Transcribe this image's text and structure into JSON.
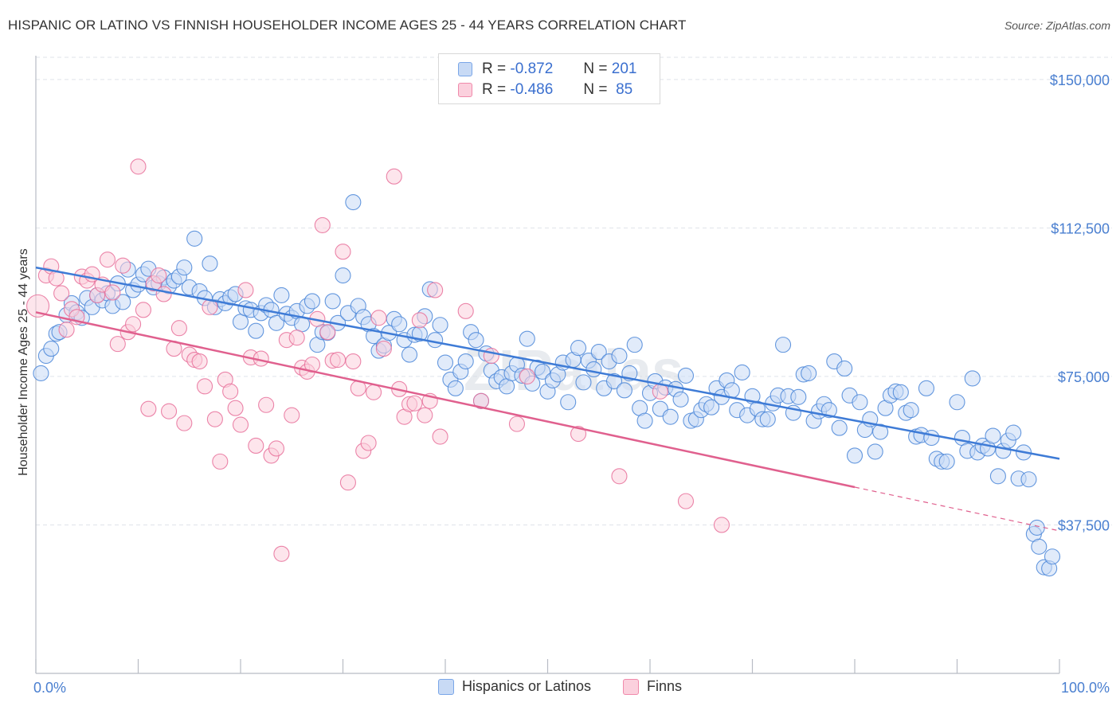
{
  "title": "HISPANIC OR LATINO VS FINNISH HOUSEHOLDER INCOME AGES 25 - 44 YEARS CORRELATION CHART",
  "source": "Source: ZipAtlas.com",
  "watermark": "ZIPatlas",
  "legend": {
    "r_label": "R =",
    "n_label": "N =",
    "rows": [
      {
        "r": "-0.872",
        "n": "201",
        "color": "#7aa6e8",
        "fill": "#c8daf5"
      },
      {
        "r": "-0.486",
        "n": "85",
        "color": "#f08aab",
        "fill": "#fbd0dd"
      }
    ]
  },
  "bottom_legend": [
    {
      "label": "Hispanics or Latinos",
      "color": "#7aa6e8",
      "fill": "#c8daf5"
    },
    {
      "label": "Finns",
      "color": "#f08aab",
      "fill": "#fbd0dd"
    }
  ],
  "chart_data": {
    "type": "scatter",
    "title": "HISPANIC OR LATINO VS FINNISH HOUSEHOLDER INCOME AGES 25 - 44 YEARS CORRELATION CHART",
    "xlabel": "",
    "ylabel": "Householder Income Ages 25 - 44 years",
    "xlim": [
      0,
      100
    ],
    "ylim": [
      0,
      156000
    ],
    "x_tick_labels": [
      "0.0%",
      "100.0%"
    ],
    "y_ticks": [
      37500,
      75000,
      112500,
      150000
    ],
    "y_tick_labels": [
      "$37,500",
      "$75,000",
      "$112,500",
      "$150,000"
    ],
    "grid": "horizontal dashed",
    "legend_placement": "top-center",
    "series": [
      {
        "name": "Hispanics or Latinos",
        "color": "#4a86d8",
        "fill": "#c8daf5",
        "trend": {
          "x": [
            0,
            100
          ],
          "y": [
            102500,
            54200
          ]
        },
        "points": [
          [
            0.5,
            75800
          ],
          [
            1,
            80200
          ],
          [
            1.5,
            82000
          ],
          [
            2,
            85800
          ],
          [
            2.3,
            86200
          ],
          [
            3,
            90500
          ],
          [
            3.5,
            93500
          ],
          [
            4,
            91200
          ],
          [
            4.5,
            89800
          ],
          [
            5,
            94800
          ],
          [
            5.5,
            92500
          ],
          [
            6,
            95500
          ],
          [
            6.5,
            94200
          ],
          [
            7,
            96000
          ],
          [
            7.5,
            92800
          ],
          [
            8,
            98500
          ],
          [
            8.5,
            93800
          ],
          [
            9,
            102000
          ],
          [
            9.5,
            96800
          ],
          [
            10,
            98200
          ],
          [
            10.5,
            100800
          ],
          [
            11,
            102200
          ],
          [
            11.5,
            97500
          ],
          [
            12,
            98500
          ],
          [
            12.5,
            100000
          ],
          [
            13,
            97800
          ],
          [
            13.5,
            99200
          ],
          [
            14,
            100200
          ],
          [
            14.5,
            102500
          ],
          [
            15,
            97500
          ],
          [
            15.5,
            109800
          ],
          [
            16,
            96500
          ],
          [
            16.5,
            94800
          ],
          [
            17,
            103500
          ],
          [
            17.5,
            92500
          ],
          [
            18,
            94500
          ],
          [
            18.5,
            93500
          ],
          [
            19,
            95000
          ],
          [
            19.5,
            95800
          ],
          [
            20,
            88800
          ],
          [
            20.5,
            92200
          ],
          [
            21,
            91800
          ],
          [
            21.5,
            86500
          ],
          [
            22,
            91000
          ],
          [
            22.5,
            93000
          ],
          [
            23,
            91800
          ],
          [
            23.5,
            88500
          ],
          [
            24,
            95500
          ],
          [
            24.5,
            90800
          ],
          [
            25,
            89800
          ],
          [
            25.5,
            91500
          ],
          [
            26,
            88200
          ],
          [
            26.5,
            92800
          ],
          [
            27,
            94000
          ],
          [
            27.5,
            83000
          ],
          [
            28,
            86200
          ],
          [
            28.5,
            86000
          ],
          [
            29,
            94000
          ],
          [
            29.5,
            88500
          ],
          [
            30,
            100500
          ],
          [
            30.5,
            91000
          ],
          [
            31,
            119000
          ],
          [
            31.5,
            92800
          ],
          [
            32,
            90000
          ],
          [
            32.5,
            88200
          ],
          [
            33,
            85200
          ],
          [
            33.5,
            81500
          ],
          [
            34,
            82800
          ],
          [
            34.5,
            86000
          ],
          [
            35,
            89500
          ],
          [
            35.5,
            88200
          ],
          [
            36,
            84200
          ],
          [
            36.5,
            80500
          ],
          [
            37,
            85500
          ],
          [
            37.5,
            85800
          ],
          [
            38,
            90200
          ],
          [
            38.5,
            97000
          ],
          [
            39,
            84200
          ],
          [
            39.5,
            88000
          ],
          [
            40,
            78500
          ],
          [
            40.5,
            74200
          ],
          [
            41,
            72000
          ],
          [
            41.5,
            76200
          ],
          [
            42,
            78800
          ],
          [
            42.5,
            86200
          ],
          [
            43,
            84200
          ],
          [
            43.5,
            68800
          ],
          [
            44,
            80800
          ],
          [
            44.5,
            76500
          ],
          [
            45,
            73800
          ],
          [
            45.5,
            74800
          ],
          [
            46,
            72500
          ],
          [
            46.5,
            75800
          ],
          [
            47,
            78000
          ],
          [
            47.5,
            75200
          ],
          [
            48,
            84500
          ],
          [
            48.5,
            73200
          ],
          [
            49,
            77200
          ],
          [
            49.5,
            76200
          ],
          [
            50,
            71200
          ],
          [
            50.5,
            74000
          ],
          [
            51,
            75500
          ],
          [
            51.5,
            78500
          ],
          [
            52,
            68500
          ],
          [
            52.5,
            79200
          ],
          [
            53,
            82200
          ],
          [
            53.5,
            73500
          ],
          [
            54,
            79000
          ],
          [
            54.5,
            76800
          ],
          [
            55,
            81200
          ],
          [
            55.5,
            72000
          ],
          [
            56,
            78800
          ],
          [
            56.5,
            73800
          ],
          [
            57,
            80200
          ],
          [
            57.5,
            71500
          ],
          [
            58,
            75800
          ],
          [
            58.5,
            83000
          ],
          [
            59,
            67000
          ],
          [
            59.5,
            63800
          ],
          [
            60,
            70800
          ],
          [
            60.5,
            73800
          ],
          [
            61,
            66800
          ],
          [
            61.5,
            72200
          ],
          [
            62,
            64800
          ],
          [
            62.5,
            71800
          ],
          [
            63,
            69200
          ],
          [
            63.5,
            75200
          ],
          [
            64,
            63800
          ],
          [
            64.5,
            64200
          ],
          [
            65,
            66500
          ],
          [
            65.5,
            68000
          ],
          [
            66,
            67200
          ],
          [
            66.5,
            72000
          ],
          [
            67,
            69800
          ],
          [
            67.5,
            74000
          ],
          [
            68,
            71500
          ],
          [
            68.5,
            66500
          ],
          [
            69,
            76000
          ],
          [
            69.5,
            65200
          ],
          [
            70,
            70000
          ],
          [
            70.5,
            66800
          ],
          [
            71,
            64200
          ],
          [
            71.5,
            64200
          ],
          [
            72,
            68200
          ],
          [
            72.5,
            70200
          ],
          [
            73,
            83000
          ],
          [
            73.5,
            70000
          ],
          [
            74,
            65800
          ],
          [
            74.5,
            69800
          ],
          [
            75,
            75500
          ],
          [
            75.5,
            75800
          ],
          [
            76,
            63800
          ],
          [
            76.5,
            66200
          ],
          [
            77,
            68000
          ],
          [
            77.5,
            66500
          ],
          [
            78,
            78800
          ],
          [
            78.5,
            62000
          ],
          [
            79,
            77000
          ],
          [
            79.5,
            70200
          ],
          [
            80,
            55000
          ],
          [
            80.5,
            68500
          ],
          [
            81,
            61500
          ],
          [
            81.5,
            64200
          ],
          [
            82,
            56000
          ],
          [
            82.5,
            61000
          ],
          [
            83,
            67000
          ],
          [
            83.5,
            70200
          ],
          [
            84,
            71200
          ],
          [
            84.5,
            71000
          ],
          [
            85,
            65800
          ],
          [
            85.5,
            66500
          ],
          [
            86,
            59800
          ],
          [
            86.5,
            60200
          ],
          [
            87,
            72000
          ],
          [
            87.5,
            59500
          ],
          [
            88,
            54200
          ],
          [
            88.5,
            53500
          ],
          [
            89,
            53500
          ],
          [
            90,
            68500
          ],
          [
            90.5,
            59500
          ],
          [
            91,
            56200
          ],
          [
            91.5,
            74500
          ],
          [
            92,
            55800
          ],
          [
            92.5,
            57500
          ],
          [
            93,
            56800
          ],
          [
            93.5,
            60000
          ],
          [
            94,
            49800
          ],
          [
            94.5,
            56200
          ],
          [
            95,
            58800
          ],
          [
            95.5,
            60800
          ],
          [
            96,
            49200
          ],
          [
            96.5,
            55800
          ],
          [
            97,
            49000
          ],
          [
            97.5,
            35200
          ],
          [
            97.8,
            36800
          ],
          [
            98,
            32000
          ],
          [
            98.5,
            26800
          ],
          [
            99,
            26500
          ],
          [
            99.3,
            29500
          ]
        ]
      },
      {
        "name": "Finns",
        "color": "#e8709a",
        "fill": "#fbd0dd",
        "trend": {
          "x": [
            0,
            100
          ],
          "y": [
            91200,
            36000
          ],
          "solid_until_x": 80
        },
        "points": [
          [
            0.2,
            92800
          ],
          [
            1,
            100500
          ],
          [
            1.5,
            102800
          ],
          [
            2,
            99800
          ],
          [
            2.5,
            96000
          ],
          [
            3,
            86800
          ],
          [
            3.5,
            92000
          ],
          [
            4,
            90000
          ],
          [
            4.5,
            100200
          ],
          [
            5,
            99200
          ],
          [
            5.5,
            100800
          ],
          [
            6,
            95500
          ],
          [
            6.5,
            98200
          ],
          [
            7,
            104500
          ],
          [
            7.5,
            96200
          ],
          [
            8,
            83200
          ],
          [
            8.5,
            103000
          ],
          [
            9,
            86200
          ],
          [
            9.5,
            88200
          ],
          [
            10,
            128000
          ],
          [
            10.5,
            91800
          ],
          [
            11,
            66800
          ],
          [
            11.5,
            98500
          ],
          [
            12,
            100500
          ],
          [
            12.5,
            95800
          ],
          [
            13,
            66200
          ],
          [
            13.5,
            82000
          ],
          [
            14,
            87200
          ],
          [
            14.5,
            63200
          ],
          [
            15,
            80500
          ],
          [
            15.5,
            79200
          ],
          [
            16,
            78800
          ],
          [
            16.5,
            72500
          ],
          [
            17,
            92500
          ],
          [
            17.5,
            64200
          ],
          [
            18,
            53500
          ],
          [
            18.5,
            74200
          ],
          [
            19,
            71200
          ],
          [
            19.5,
            67000
          ],
          [
            20,
            62800
          ],
          [
            20.5,
            96800
          ],
          [
            21,
            79800
          ],
          [
            21.5,
            57500
          ],
          [
            22,
            79500
          ],
          [
            22.5,
            67800
          ],
          [
            23,
            55000
          ],
          [
            23.5,
            56800
          ],
          [
            24,
            30200
          ],
          [
            24.5,
            84200
          ],
          [
            25,
            65200
          ],
          [
            25.5,
            84800
          ],
          [
            26,
            77200
          ],
          [
            26.5,
            76200
          ],
          [
            27,
            78000
          ],
          [
            27.5,
            89500
          ],
          [
            28,
            113200
          ],
          [
            28.5,
            86200
          ],
          [
            29,
            79000
          ],
          [
            29.5,
            79200
          ],
          [
            30,
            106500
          ],
          [
            30.5,
            48200
          ],
          [
            31,
            78800
          ],
          [
            31.5,
            72000
          ],
          [
            32,
            56200
          ],
          [
            32.5,
            58200
          ],
          [
            33,
            71000
          ],
          [
            33.5,
            89800
          ],
          [
            34,
            82000
          ],
          [
            35,
            125500
          ],
          [
            35.5,
            71800
          ],
          [
            36,
            64800
          ],
          [
            36.5,
            68000
          ],
          [
            37,
            68200
          ],
          [
            37.5,
            89200
          ],
          [
            38,
            65200
          ],
          [
            38.5,
            68800
          ],
          [
            39,
            96800
          ],
          [
            39.5,
            59800
          ],
          [
            42,
            91500
          ],
          [
            43.5,
            68800
          ],
          [
            44.5,
            80200
          ],
          [
            47,
            63000
          ],
          [
            48,
            75000
          ],
          [
            53,
            60500
          ],
          [
            57,
            49800
          ],
          [
            61,
            71200
          ],
          [
            63.5,
            43500
          ],
          [
            67,
            37500
          ]
        ]
      }
    ]
  }
}
